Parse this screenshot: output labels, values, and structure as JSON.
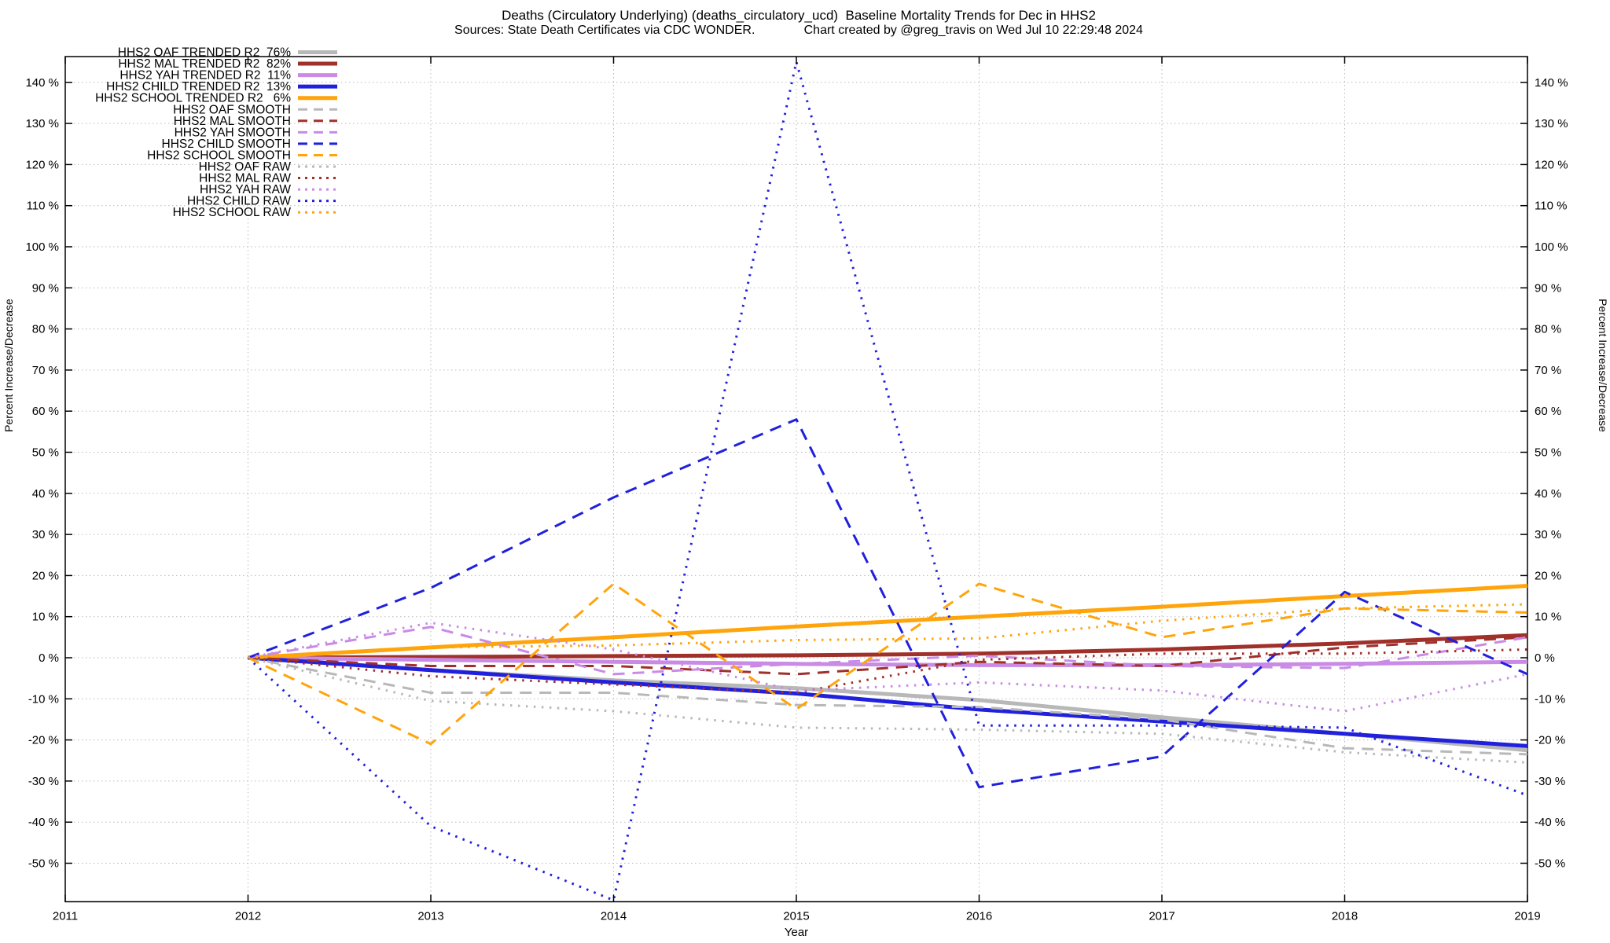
{
  "title": {
    "line1": "Deaths (Circulatory Underlying) (deaths_circulatory_ucd)  Baseline Mortality Trends for Dec in HHS2",
    "line2": "Sources: State Death Certificates via CDC WONDER.              Chart created by @greg_travis on Wed Jul 10 22:29:48 2024"
  },
  "axes": {
    "x": {
      "label": "Year",
      "ticks": [
        2011,
        2012,
        2013,
        2014,
        2015,
        2016,
        2017,
        2018,
        2019
      ]
    },
    "y": {
      "label_left": "Percent Increase/Decrease",
      "label_right": "Percent Increase/Decrease",
      "tick_suffix": " %",
      "ticks": [
        140,
        130,
        120,
        110,
        100,
        90,
        80,
        70,
        60,
        50,
        40,
        30,
        20,
        10,
        0,
        -10,
        -20,
        -30,
        -40,
        -50
      ]
    }
  },
  "legend": {
    "entries": [
      {
        "series": "oaf-trended",
        "label": "HHS2 OAF TRENDED R2  76%"
      },
      {
        "series": "mal-trended",
        "label": "HHS2 MAL TRENDED R2  82%"
      },
      {
        "series": "yah-trended",
        "label": "HHS2 YAH TRENDED R2  11%"
      },
      {
        "series": "child-trended",
        "label": "HHS2 CHILD TRENDED R2  13%"
      },
      {
        "series": "school-trended",
        "label": "HHS2 SCHOOL TRENDED R2   6%"
      },
      {
        "series": "oaf-smooth",
        "label": "HHS2 OAF SMOOTH"
      },
      {
        "series": "mal-smooth",
        "label": "HHS2 MAL SMOOTH"
      },
      {
        "series": "yah-smooth",
        "label": "HHS2 YAH SMOOTH"
      },
      {
        "series": "child-smooth",
        "label": "HHS2 CHILD SMOOTH"
      },
      {
        "series": "school-smooth",
        "label": "HHS2 SCHOOL SMOOTH"
      },
      {
        "series": "oaf-raw",
        "label": "HHS2 OAF RAW"
      },
      {
        "series": "mal-raw",
        "label": "HHS2 MAL RAW"
      },
      {
        "series": "yah-raw",
        "label": "HHS2 YAH RAW"
      },
      {
        "series": "child-raw",
        "label": "HHS2 CHILD RAW"
      },
      {
        "series": "school-raw",
        "label": "HHS2 SCHOOL RAW"
      }
    ]
  },
  "chart_data": {
    "type": "line",
    "x": [
      2012,
      2013,
      2014,
      2015,
      2016,
      2017,
      2018,
      2019
    ],
    "xlim": [
      2011,
      2019
    ],
    "ylim": [
      -59.4,
      146.3
    ],
    "grid": true,
    "legend_position": "top-left-inside",
    "colors": {
      "oaf": "#b8b8b8",
      "mal": "#a0302a",
      "yah": "#c98be6",
      "child": "#2020dd",
      "school": "#ffa40a"
    },
    "series": [
      {
        "id": "oaf-trended",
        "name": "HHS2 OAF TRENDED",
        "group": "oaf",
        "style": "trended",
        "r2_pct": 76,
        "values": [
          0,
          -3,
          -5.5,
          -7.4,
          -10.3,
          -14.5,
          -18.5,
          -22.5
        ]
      },
      {
        "id": "mal-trended",
        "name": "HHS2 MAL TRENDED",
        "group": "mal",
        "style": "trended",
        "r2_pct": 82,
        "values": [
          0,
          0.2,
          0.4,
          0.6,
          1.0,
          2.0,
          3.5,
          5.5
        ]
      },
      {
        "id": "yah-trended",
        "name": "HHS2 YAH TRENDED",
        "group": "yah",
        "style": "trended",
        "r2_pct": 11,
        "values": [
          0,
          -0.5,
          -1.0,
          -1.5,
          -1.8,
          -1.8,
          -1.5,
          -1.0
        ]
      },
      {
        "id": "child-trended",
        "name": "HHS2 CHILD TRENDED",
        "group": "child",
        "style": "trended",
        "r2_pct": 13,
        "values": [
          0,
          -3,
          -6,
          -8.7,
          -12.6,
          -15.5,
          -18.5,
          -21.5
        ]
      },
      {
        "id": "school-trended",
        "name": "HHS2 SCHOOL TRENDED",
        "group": "school",
        "style": "trended",
        "r2_pct": 6,
        "values": [
          0,
          2.5,
          5,
          7.6,
          10,
          12.4,
          15,
          17.5
        ]
      },
      {
        "id": "oaf-smooth",
        "name": "HHS2 OAF SMOOTH",
        "group": "oaf",
        "style": "smooth",
        "values": [
          0,
          -8.5,
          -8.5,
          -11.5,
          -12,
          -15,
          -22,
          -23.5
        ]
      },
      {
        "id": "mal-smooth",
        "name": "HHS2 MAL SMOOTH",
        "group": "mal",
        "style": "smooth",
        "values": [
          0,
          -2,
          -2,
          -4,
          -1,
          -2,
          2.5,
          5
        ]
      },
      {
        "id": "yah-smooth",
        "name": "HHS2 YAH SMOOTH",
        "group": "yah",
        "style": "smooth",
        "values": [
          0,
          7.5,
          -4,
          -1.5,
          0.5,
          -2,
          -2.5,
          5
        ]
      },
      {
        "id": "child-smooth",
        "name": "HHS2 CHILD SMOOTH",
        "group": "child",
        "style": "smooth",
        "values": [
          0,
          17,
          39,
          58,
          -31.5,
          -24,
          16,
          -4
        ]
      },
      {
        "id": "school-smooth",
        "name": "HHS2 SCHOOL SMOOTH",
        "group": "school",
        "style": "smooth",
        "values": [
          0,
          -21,
          18,
          -12.5,
          18,
          5,
          12,
          11
        ]
      },
      {
        "id": "oaf-raw",
        "name": "HHS2 OAF RAW",
        "group": "oaf",
        "style": "raw",
        "values": [
          0,
          -10.5,
          -13,
          -17,
          -17.5,
          -18.5,
          -23,
          -25.5
        ]
      },
      {
        "id": "mal-raw",
        "name": "HHS2 MAL RAW",
        "group": "mal",
        "style": "raw",
        "values": [
          0,
          -4.5,
          -6.5,
          -8.5,
          -0.5,
          1,
          1,
          2
        ]
      },
      {
        "id": "yah-raw",
        "name": "HHS2 YAH RAW",
        "group": "yah",
        "style": "raw",
        "values": [
          0,
          8.5,
          2,
          -8,
          -6,
          -8,
          -13,
          -4
        ]
      },
      {
        "id": "child-raw",
        "name": "HHS2 CHILD RAW",
        "group": "child",
        "style": "raw",
        "values": [
          0,
          -41,
          -59,
          145,
          -16.5,
          -16.5,
          -17,
          -33.5
        ]
      },
      {
        "id": "school-raw",
        "name": "HHS2 SCHOOL RAW",
        "group": "school",
        "style": "raw",
        "values": [
          0,
          2.5,
          3,
          4.3,
          4.7,
          9,
          12,
          13
        ]
      }
    ]
  }
}
